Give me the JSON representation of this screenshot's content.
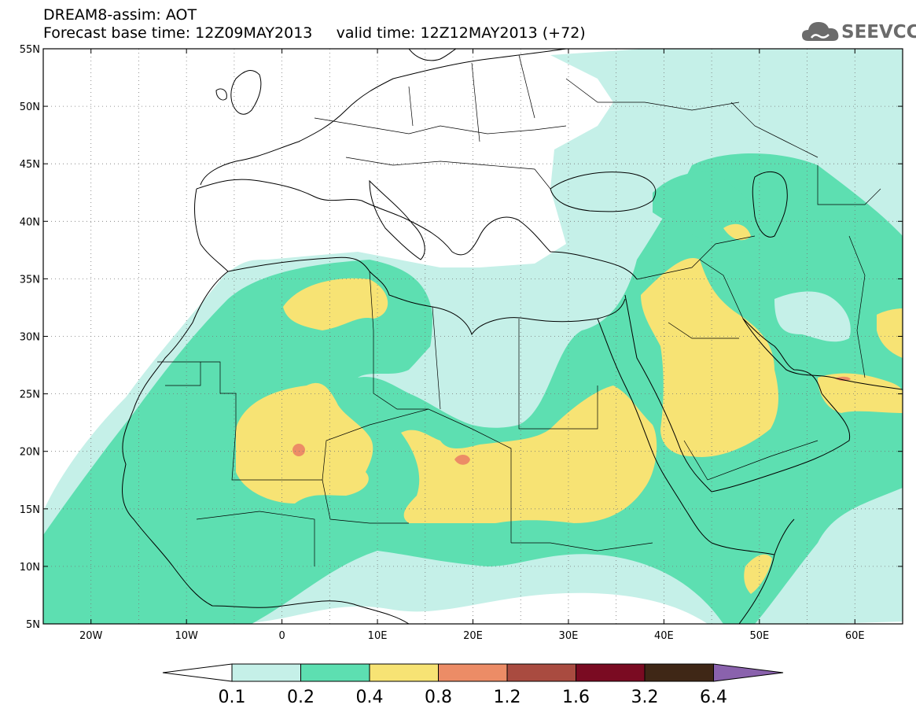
{
  "title": {
    "line1": "DREAM8-assim: AOT",
    "line2": "Forecast base time: 12Z09MAY2013     valid time: 12Z12MAY2013 (+72)"
  },
  "logo": {
    "text": "SEEVCCC",
    "icon": "cloud-icon"
  },
  "map": {
    "lon_range": [
      -25,
      65
    ],
    "lat_range": [
      5,
      55
    ],
    "lat_ticks": [
      "5N",
      "10N",
      "15N",
      "20N",
      "25N",
      "30N",
      "35N",
      "40N",
      "45N",
      "50N",
      "55N"
    ],
    "lon_ticks": [
      "20W",
      "10W",
      "0",
      "10E",
      "20E",
      "30E",
      "40E",
      "50E",
      "60E"
    ]
  },
  "colorbar": {
    "labels": [
      "0.1",
      "0.2",
      "0.4",
      "0.8",
      "1.2",
      "1.6",
      "3.2",
      "6.4"
    ],
    "colors": [
      "#c5f0e8",
      "#5ddfb1",
      "#f7e374",
      "#ec8c66",
      "#a94b40",
      "#7a0b22",
      "#3f2716",
      "#8a62ad"
    ]
  },
  "colors": {
    "level1": "#c5f0e8",
    "level2": "#5ddfb1",
    "level3": "#f7e374",
    "level4": "#ec8c66"
  }
}
